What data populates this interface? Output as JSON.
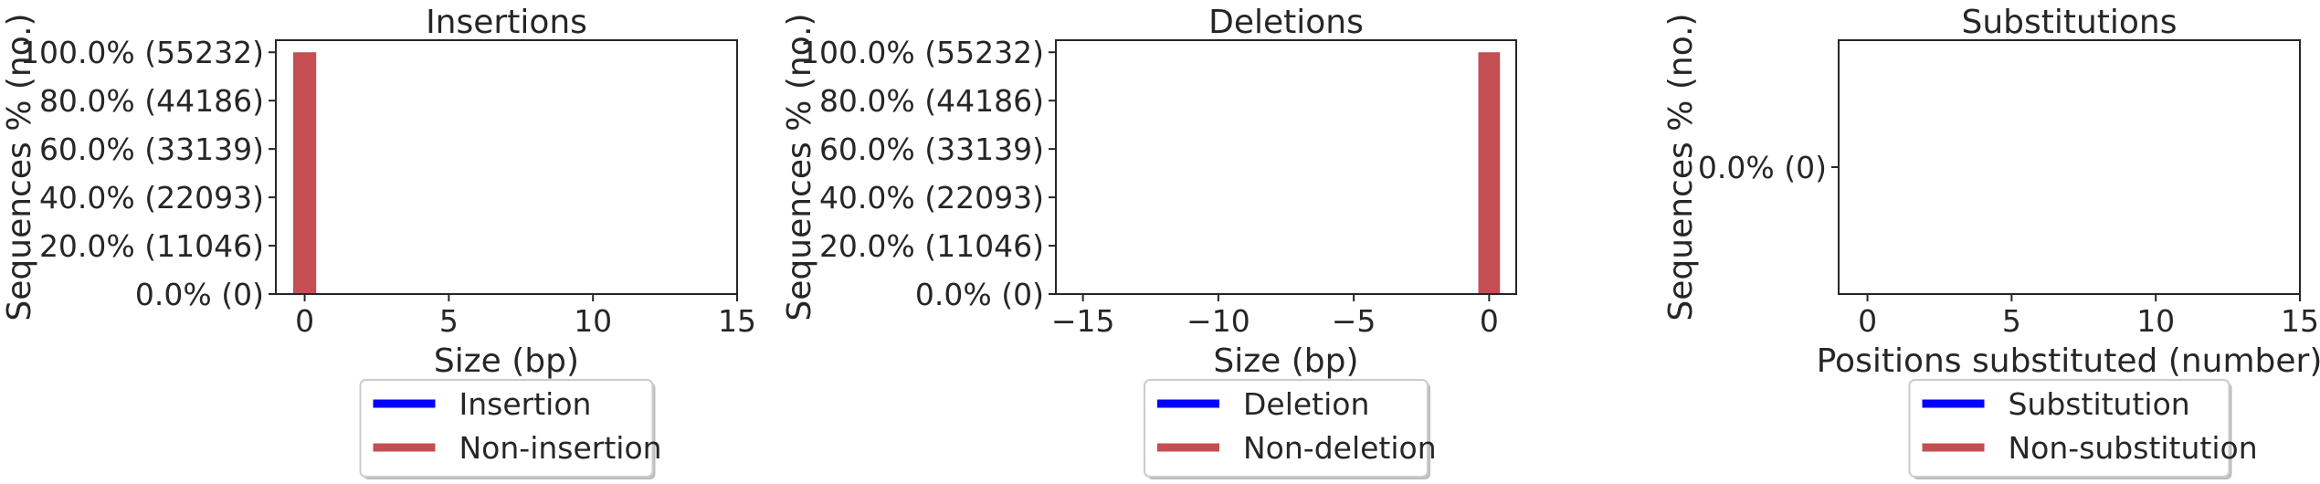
{
  "colors": {
    "affected": "#0000ff",
    "unaffected": "#c44e52",
    "axis": "#262626"
  },
  "chart_data": [
    {
      "type": "bar",
      "title": "Insertions",
      "xlabel": "Size (bp)",
      "ylabel": "Sequences % (no.)",
      "xlim": [
        -1,
        15
      ],
      "ylim": [
        0,
        1.05
      ],
      "xticks": [
        "0",
        "5",
        "10",
        "15"
      ],
      "xtick_values": [
        0,
        5,
        10,
        15
      ],
      "yticks": [
        "0.0% (0)",
        "20.0% (11046)",
        "40.0% (22093)",
        "60.0% (33139)",
        "80.0% (44186)",
        "100.0% (55232)"
      ],
      "ytick_values": [
        0,
        0.2,
        0.4,
        0.6,
        0.8,
        1.0
      ],
      "bars": [
        {
          "x": 0,
          "value": 1.0,
          "series": "Non-insertion"
        }
      ],
      "legend": {
        "placement": "bottom-center",
        "entries": [
          {
            "label": "Insertion",
            "color": "#0000ff"
          },
          {
            "label": "Non-insertion",
            "color": "#c44e52"
          }
        ]
      }
    },
    {
      "type": "bar",
      "title": "Deletions",
      "xlabel": "Size (bp)",
      "ylabel": "Sequences % (no.)",
      "xlim": [
        -16,
        1
      ],
      "ylim": [
        0,
        1.05
      ],
      "xticks": [
        "−15",
        "−10",
        "−5",
        "0"
      ],
      "xtick_values": [
        -15,
        -10,
        -5,
        0
      ],
      "yticks": [
        "0.0% (0)",
        "20.0% (11046)",
        "40.0% (22093)",
        "60.0% (33139)",
        "80.0% (44186)",
        "100.0% (55232)"
      ],
      "ytick_values": [
        0,
        0.2,
        0.4,
        0.6,
        0.8,
        1.0
      ],
      "bars": [
        {
          "x": 0,
          "value": 1.0,
          "series": "Non-deletion"
        }
      ],
      "legend": {
        "placement": "bottom-center",
        "entries": [
          {
            "label": "Deletion",
            "color": "#0000ff"
          },
          {
            "label": "Non-deletion",
            "color": "#c44e52"
          }
        ]
      }
    },
    {
      "type": "bar",
      "title": "Substitutions",
      "xlabel": "Positions substituted (number)",
      "ylabel": "Sequences % (no.)",
      "xlim": [
        -1,
        15
      ],
      "ylim": [
        -1,
        1
      ],
      "xticks": [
        "0",
        "5",
        "10",
        "15"
      ],
      "xtick_values": [
        0,
        5,
        10,
        15
      ],
      "yticks": [
        "0.0% (0)"
      ],
      "ytick_values": [
        0
      ],
      "bars": [],
      "legend": {
        "placement": "bottom-center",
        "entries": [
          {
            "label": "Substitution",
            "color": "#0000ff"
          },
          {
            "label": "Non-substitution",
            "color": "#c44e52"
          }
        ]
      }
    }
  ]
}
